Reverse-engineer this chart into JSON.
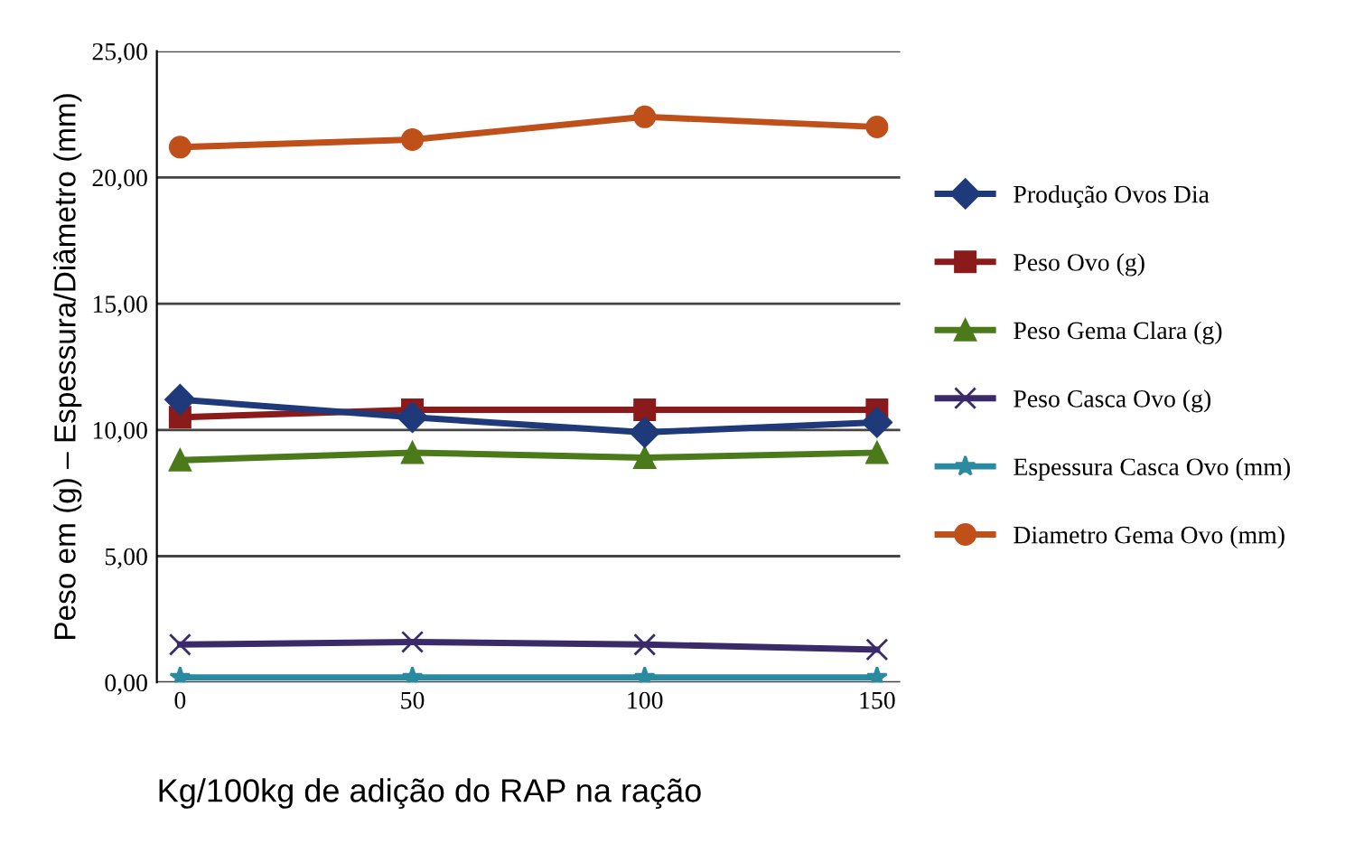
{
  "chart_data": {
    "type": "line",
    "xlabel": "Kg/100kg de adição do RAP na ração",
    "ylabel": "Peso em (g) – Espessura/Diâmetro (mm)",
    "categories": [
      "0",
      "50",
      "100",
      "150"
    ],
    "ylim": [
      0,
      25
    ],
    "yticks": [
      {
        "value": 0,
        "label": "0,00"
      },
      {
        "value": 5,
        "label": "5,00"
      },
      {
        "value": 10,
        "label": "10,00"
      },
      {
        "value": 15,
        "label": "15,00"
      },
      {
        "value": 20,
        "label": "20,00"
      },
      {
        "value": 25,
        "label": "25,00"
      }
    ],
    "grid": "y",
    "legend": "right",
    "series": [
      {
        "name": "Produção Ovos Dia",
        "color": "#1f3a7a",
        "marker": "diamond",
        "values": [
          11.2,
          10.5,
          9.9,
          10.3
        ]
      },
      {
        "name": "Peso Ovo (g)",
        "color": "#8b1a1a",
        "marker": "square",
        "values": [
          10.5,
          10.8,
          10.8,
          10.8
        ]
      },
      {
        "name": "Peso Gema Clara (g)",
        "color": "#4a7a1a",
        "marker": "triangle",
        "values": [
          8.8,
          9.1,
          8.9,
          9.1
        ]
      },
      {
        "name": "Peso Casca Ovo (g)",
        "color": "#3a2a6a",
        "marker": "cross",
        "values": [
          1.5,
          1.6,
          1.5,
          1.3
        ]
      },
      {
        "name": "Espessura Casca Ovo (mm)",
        "color": "#2a8aa0",
        "marker": "star",
        "values": [
          0.2,
          0.2,
          0.2,
          0.2
        ]
      },
      {
        "name": "Diametro Gema Ovo (mm)",
        "color": "#c0501a",
        "marker": "circle",
        "values": [
          21.2,
          21.5,
          22.4,
          22.0
        ]
      }
    ]
  }
}
